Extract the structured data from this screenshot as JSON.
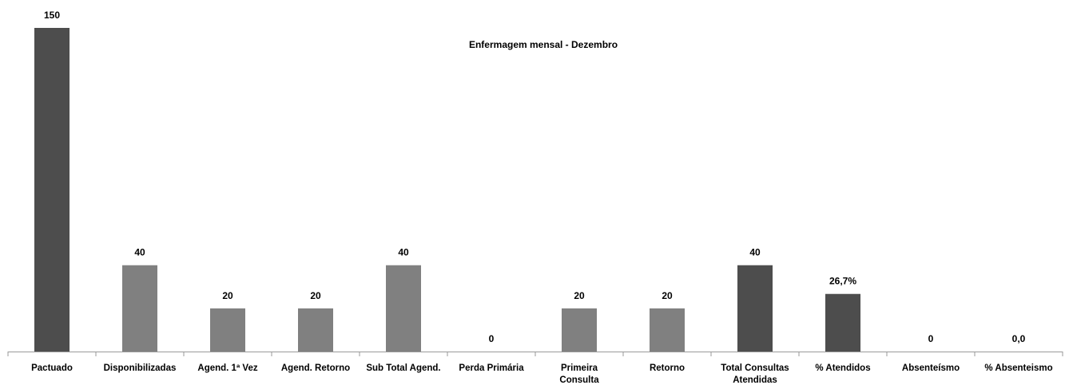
{
  "chart_data": {
    "type": "bar",
    "title": "Enfermagem mensal - Dezembro",
    "categories": [
      "Pactuado",
      "Disponibilizadas",
      "Agend. 1ª Vez",
      "Agend. Retorno",
      "Sub Total Agend.",
      "Perda Primária",
      "Primeira Consulta",
      "Retorno",
      "Total Consultas Atendidas",
      "% Atendidos",
      "Absenteísmo",
      "% Absenteismo"
    ],
    "values": [
      150,
      40,
      20,
      20,
      40,
      0,
      20,
      20,
      40,
      26.7,
      0,
      0
    ],
    "value_labels": [
      "150",
      "40",
      "20",
      "20",
      "40",
      "0",
      "20",
      "20",
      "40",
      "26,7%",
      "0",
      "0,0"
    ],
    "colors": [
      "#4d4d4d",
      "#808080",
      "#808080",
      "#808080",
      "#808080",
      "#808080",
      "#808080",
      "#808080",
      "#4d4d4d",
      "#4d4d4d",
      "#808080",
      "#808080"
    ],
    "ylim": [
      0,
      150
    ]
  }
}
